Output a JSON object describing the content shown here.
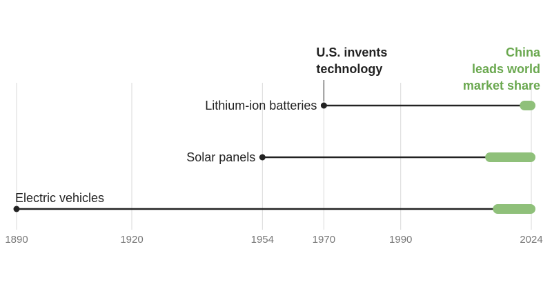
{
  "chart_data": {
    "type": "timeline",
    "title": "",
    "xlabel": "",
    "ylabel": "",
    "xlim": [
      1890,
      2024
    ],
    "x_ticks": [
      1890,
      1920,
      1954,
      1970,
      1990,
      2024
    ],
    "series": [
      {
        "name": "Lithium-ion batteries",
        "start": 1970,
        "china_lead_start": 2021,
        "end": 2024
      },
      {
        "name": "Solar panels",
        "start": 1954,
        "china_lead_start": 2012,
        "end": 2024
      },
      {
        "name": "Electric vehicles",
        "start": 1890,
        "china_lead_start": 2014,
        "end": 2024
      }
    ],
    "annotations": [
      {
        "id": "us",
        "lines": [
          "U.S. invents",
          "technology"
        ],
        "x": 1970,
        "color": "#222222"
      },
      {
        "id": "china",
        "lines": [
          "China",
          "leads world",
          "market share"
        ],
        "x": 2024,
        "color": "#6aa84f"
      }
    ],
    "colors": {
      "line": "#222222",
      "highlight": "#8fc07a",
      "grid": "#d9d9d9",
      "tick": "#777777"
    }
  }
}
